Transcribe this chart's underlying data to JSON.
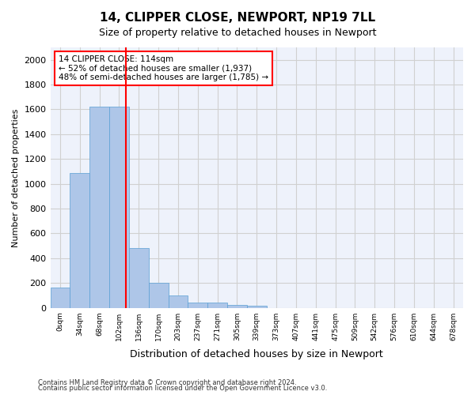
{
  "title1": "14, CLIPPER CLOSE, NEWPORT, NP19 7LL",
  "title2": "Size of property relative to detached houses in Newport",
  "xlabel": "Distribution of detached houses by size in Newport",
  "ylabel": "Number of detached properties",
  "bar_values": [
    165,
    1085,
    1625,
    1620,
    480,
    200,
    100,
    45,
    40,
    25,
    20,
    0,
    0,
    0,
    0,
    0,
    0,
    0,
    0,
    0,
    0
  ],
  "categories": [
    "0sqm",
    "34sqm",
    "68sqm",
    "102sqm",
    "136sqm",
    "170sqm",
    "203sqm",
    "237sqm",
    "271sqm",
    "305sqm",
    "339sqm",
    "373sqm",
    "407sqm",
    "441sqm",
    "475sqm",
    "509sqm",
    "542sqm",
    "576sqm",
    "610sqm",
    "644sqm",
    "678sqm"
  ],
  "bar_color": "#aec6e8",
  "bar_edge_color": "#5a9fd4",
  "grid_color": "#d0d0d0",
  "bg_color": "#eef2fb",
  "vline_color": "red",
  "annotation_text": "14 CLIPPER CLOSE: 114sqm\n← 52% of detached houses are smaller (1,937)\n48% of semi-detached houses are larger (1,785) →",
  "footnote1": "Contains HM Land Registry data © Crown copyright and database right 2024.",
  "footnote2": "Contains public sector information licensed under the Open Government Licence v3.0.",
  "ylim": [
    0,
    2100
  ],
  "yticks": [
    0,
    200,
    400,
    600,
    800,
    1000,
    1200,
    1400,
    1600,
    1800,
    2000
  ]
}
